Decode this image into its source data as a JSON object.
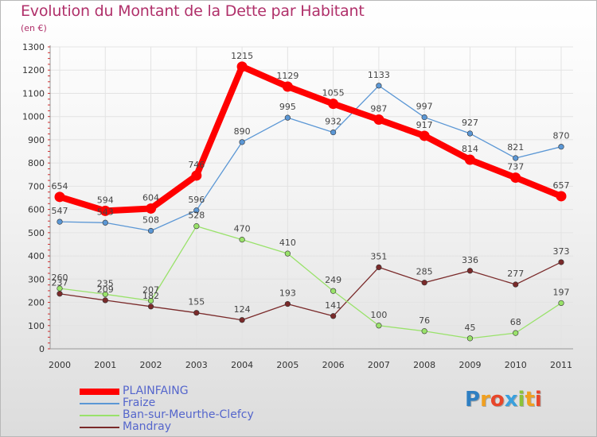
{
  "header": {
    "title": "Evolution du Montant de la Dette par Habitant",
    "subtitle": "(en €)"
  },
  "logo": {
    "text": "Proxiti",
    "letters": [
      {
        "ch": "P",
        "color": "#2e7fc2"
      },
      {
        "ch": "r",
        "color": "#f0a020"
      },
      {
        "ch": "o",
        "color": "#e8462a"
      },
      {
        "ch": "x",
        "color": "#3aa0dd"
      },
      {
        "ch": "i",
        "color": "#8bc33a"
      },
      {
        "ch": "t",
        "color": "#f0a020"
      },
      {
        "ch": "i",
        "color": "#e8462a"
      }
    ]
  },
  "chart_data": {
    "type": "line",
    "title": "Evolution du Montant de la Dette par Habitant",
    "subtitle": "(en €)",
    "xlabel": "",
    "ylabel": "",
    "x": [
      "2000",
      "2001",
      "2002",
      "2003",
      "2004",
      "2005",
      "2006",
      "2007",
      "2008",
      "2009",
      "2010",
      "2011"
    ],
    "ylim": [
      0,
      1300
    ],
    "yticks": [
      0,
      100,
      200,
      300,
      400,
      500,
      600,
      700,
      800,
      900,
      1000,
      1100,
      1200,
      1300
    ],
    "grid": true,
    "legend_position": "bottom-left",
    "series": [
      {
        "name": "PLAINFAING",
        "color": "#ff0000",
        "values": [
          654,
          594,
          604,
          746,
          1215,
          1129,
          1055,
          987,
          917,
          814,
          737,
          657
        ]
      },
      {
        "name": "Fraize",
        "color": "#5b97d5",
        "values": [
          547,
          543,
          508,
          596,
          890,
          995,
          932,
          1133,
          997,
          927,
          821,
          870
        ]
      },
      {
        "name": "Ban-sur-Meurthe-Clefcy",
        "color": "#99e26a",
        "values": [
          260,
          235,
          207,
          528,
          470,
          410,
          249,
          100,
          76,
          45,
          68,
          197
        ]
      },
      {
        "name": "Mandray",
        "color": "#7a2a2a",
        "values": [
          237,
          209,
          182,
          155,
          124,
          193,
          141,
          351,
          285,
          336,
          277,
          373
        ]
      }
    ]
  }
}
